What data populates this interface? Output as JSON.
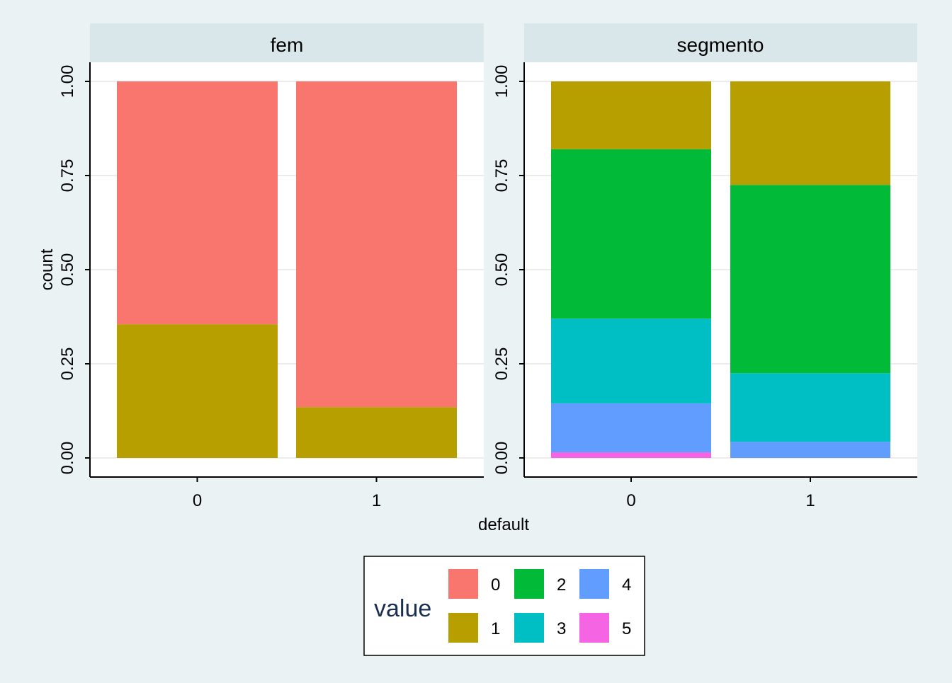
{
  "chart_data": {
    "type": "bar",
    "stacked": true,
    "xlabel": "default",
    "ylabel": "count",
    "ylim": [
      0,
      1
    ],
    "y_ticks": [
      "0.00",
      "0.25",
      "0.50",
      "0.75",
      "1.00"
    ],
    "categories": [
      "0",
      "1"
    ],
    "grid": true,
    "legend": {
      "title": "value",
      "placement": "bottom",
      "entries": [
        {
          "label": "0",
          "color": "#F8766D"
        },
        {
          "label": "1",
          "color": "#B79F00"
        },
        {
          "label": "2",
          "color": "#00BA38"
        },
        {
          "label": "3",
          "color": "#00BFC4"
        },
        {
          "label": "4",
          "color": "#619CFF"
        },
        {
          "label": "5",
          "color": "#F564E3"
        }
      ]
    },
    "panels": [
      {
        "title": "fem",
        "series": [
          {
            "name": "0",
            "values": [
              0.645,
              0.865
            ]
          },
          {
            "name": "1",
            "values": [
              0.355,
              0.135
            ]
          }
        ]
      },
      {
        "title": "segmento",
        "series": [
          {
            "name": "1",
            "values": [
              0.18,
              0.275
            ]
          },
          {
            "name": "2",
            "values": [
              0.45,
              0.5
            ]
          },
          {
            "name": "3",
            "values": [
              0.225,
              0.182
            ]
          },
          {
            "name": "4",
            "values": [
              0.13,
              0.043
            ]
          },
          {
            "name": "5",
            "values": [
              0.015,
              0.0
            ]
          }
        ]
      }
    ]
  }
}
